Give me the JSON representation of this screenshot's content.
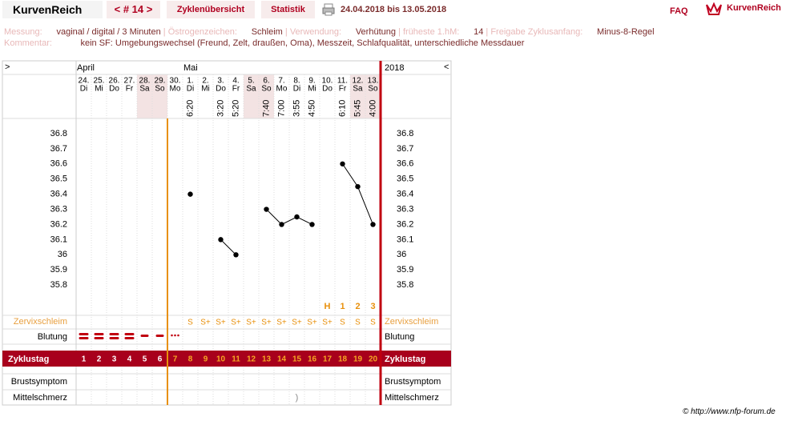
{
  "nav": {
    "brand": "KurvenReich",
    "cycle": "< # 14 >",
    "tabs": [
      "Zyklenübersicht",
      "Statistik"
    ],
    "date_range": "24.04.2018 bis 13.05.2018",
    "faq": "FAQ",
    "logo": "KurvenReich"
  },
  "info": {
    "fields": [
      {
        "label": "Messung:",
        "value": "vaginal / digital / 3 Minuten"
      },
      {
        "label": "Östrogenzeichen:",
        "value": "Schleim"
      },
      {
        "label": "Verwendung:",
        "value": "Verhütung"
      },
      {
        "label": "früheste 1.hM:",
        "value": "14"
      },
      {
        "label": "Freigabe Zyklusanfang:",
        "value": "Minus-8-Regel"
      }
    ],
    "comment": {
      "label": "Kommentar:",
      "value": "kein SF: Umgebungswechsel (Freund, Zelt, draußen, Oma), Messzeit, Schlafqualität, unterschiedliche Messdauer"
    }
  },
  "chart_data": {
    "type": "line",
    "nav_left": ">",
    "nav_right": "<",
    "year": "2018",
    "month_labels": [
      "April",
      null,
      null,
      null,
      null,
      null,
      null,
      "Mai",
      null,
      null,
      null,
      null,
      null,
      null,
      null,
      null,
      null,
      null,
      null,
      null
    ],
    "categories": [
      "24.",
      "25.",
      "26.",
      "27.",
      "28.",
      "29.",
      "30.",
      "1.",
      "2.",
      "3.",
      "4.",
      "5.",
      "6.",
      "7.",
      "8.",
      "9.",
      "10.",
      "11.",
      "12.",
      "13."
    ],
    "weekdays": [
      "Di",
      "Mi",
      "Do",
      "Fr",
      "Sa",
      "So",
      "Mo",
      "Di",
      "Mi",
      "Do",
      "Fr",
      "Sa",
      "So",
      "Mo",
      "Di",
      "Mi",
      "Do",
      "Fr",
      "Sa",
      "So"
    ],
    "shaded": [
      false,
      false,
      false,
      false,
      true,
      true,
      false,
      false,
      false,
      false,
      false,
      true,
      true,
      false,
      false,
      false,
      false,
      false,
      true,
      true
    ],
    "times": [
      null,
      null,
      null,
      null,
      null,
      null,
      null,
      "6:20",
      null,
      "3:20",
      "5:20",
      null,
      "7:40",
      "7:00",
      "3:55",
      "4:50",
      null,
      "6:10",
      "5:45",
      "4:00"
    ],
    "values": [
      null,
      null,
      null,
      null,
      null,
      null,
      null,
      36.4,
      null,
      36.1,
      36.0,
      null,
      36.3,
      36.2,
      36.25,
      36.2,
      null,
      36.6,
      36.45,
      36.2
    ],
    "color": "#000000",
    "ylim": [
      35.6,
      36.9
    ],
    "yticks": [
      35.8,
      35.9,
      36,
      36.1,
      36.2,
      36.3,
      36.4,
      36.5,
      36.6,
      36.7,
      36.8
    ],
    "markers": [
      null,
      null,
      null,
      null,
      null,
      null,
      null,
      null,
      null,
      null,
      null,
      null,
      null,
      null,
      null,
      null,
      "H",
      "1",
      "2",
      "3"
    ],
    "cervix": {
      "label": "Zervixschleim",
      "values": [
        null,
        null,
        null,
        null,
        null,
        null,
        null,
        "S",
        "S+",
        "S+",
        "S+",
        "S+",
        "S+",
        "S+",
        "S+",
        "S+",
        "S+",
        "S",
        "S",
        "S"
      ]
    },
    "bleeding": {
      "label": "Blutung"
    },
    "cycle_day": {
      "label": "Zyklustag",
      "values": [
        1,
        2,
        3,
        4,
        5,
        6,
        7,
        8,
        9,
        10,
        11,
        12,
        13,
        14,
        15,
        16,
        17,
        18,
        19,
        20
      ],
      "colors": [
        "#ffffff",
        "#ffffff",
        "#ffffff",
        "#ffffff",
        "#ffffff",
        "#ffffff",
        "#f5a623",
        "#f5a623",
        "#f5a623",
        "#f5a623",
        "#f5a623",
        "#f5a623",
        "#f5a623",
        "#f5a623",
        "#f5a623",
        "#f5a623",
        "#f5a623",
        "#f5a623",
        "#f5a623",
        "#f5a623"
      ]
    },
    "breast": {
      "label": "Brustsymptom"
    },
    "midpain": {
      "label": "Mittelschmerz",
      "values": [
        null,
        null,
        null,
        null,
        null,
        null,
        null,
        null,
        null,
        null,
        null,
        null,
        null,
        null,
        ")",
        null,
        null,
        null,
        null,
        null
      ]
    }
  },
  "footer": "© http://www.nfp-forum.de"
}
